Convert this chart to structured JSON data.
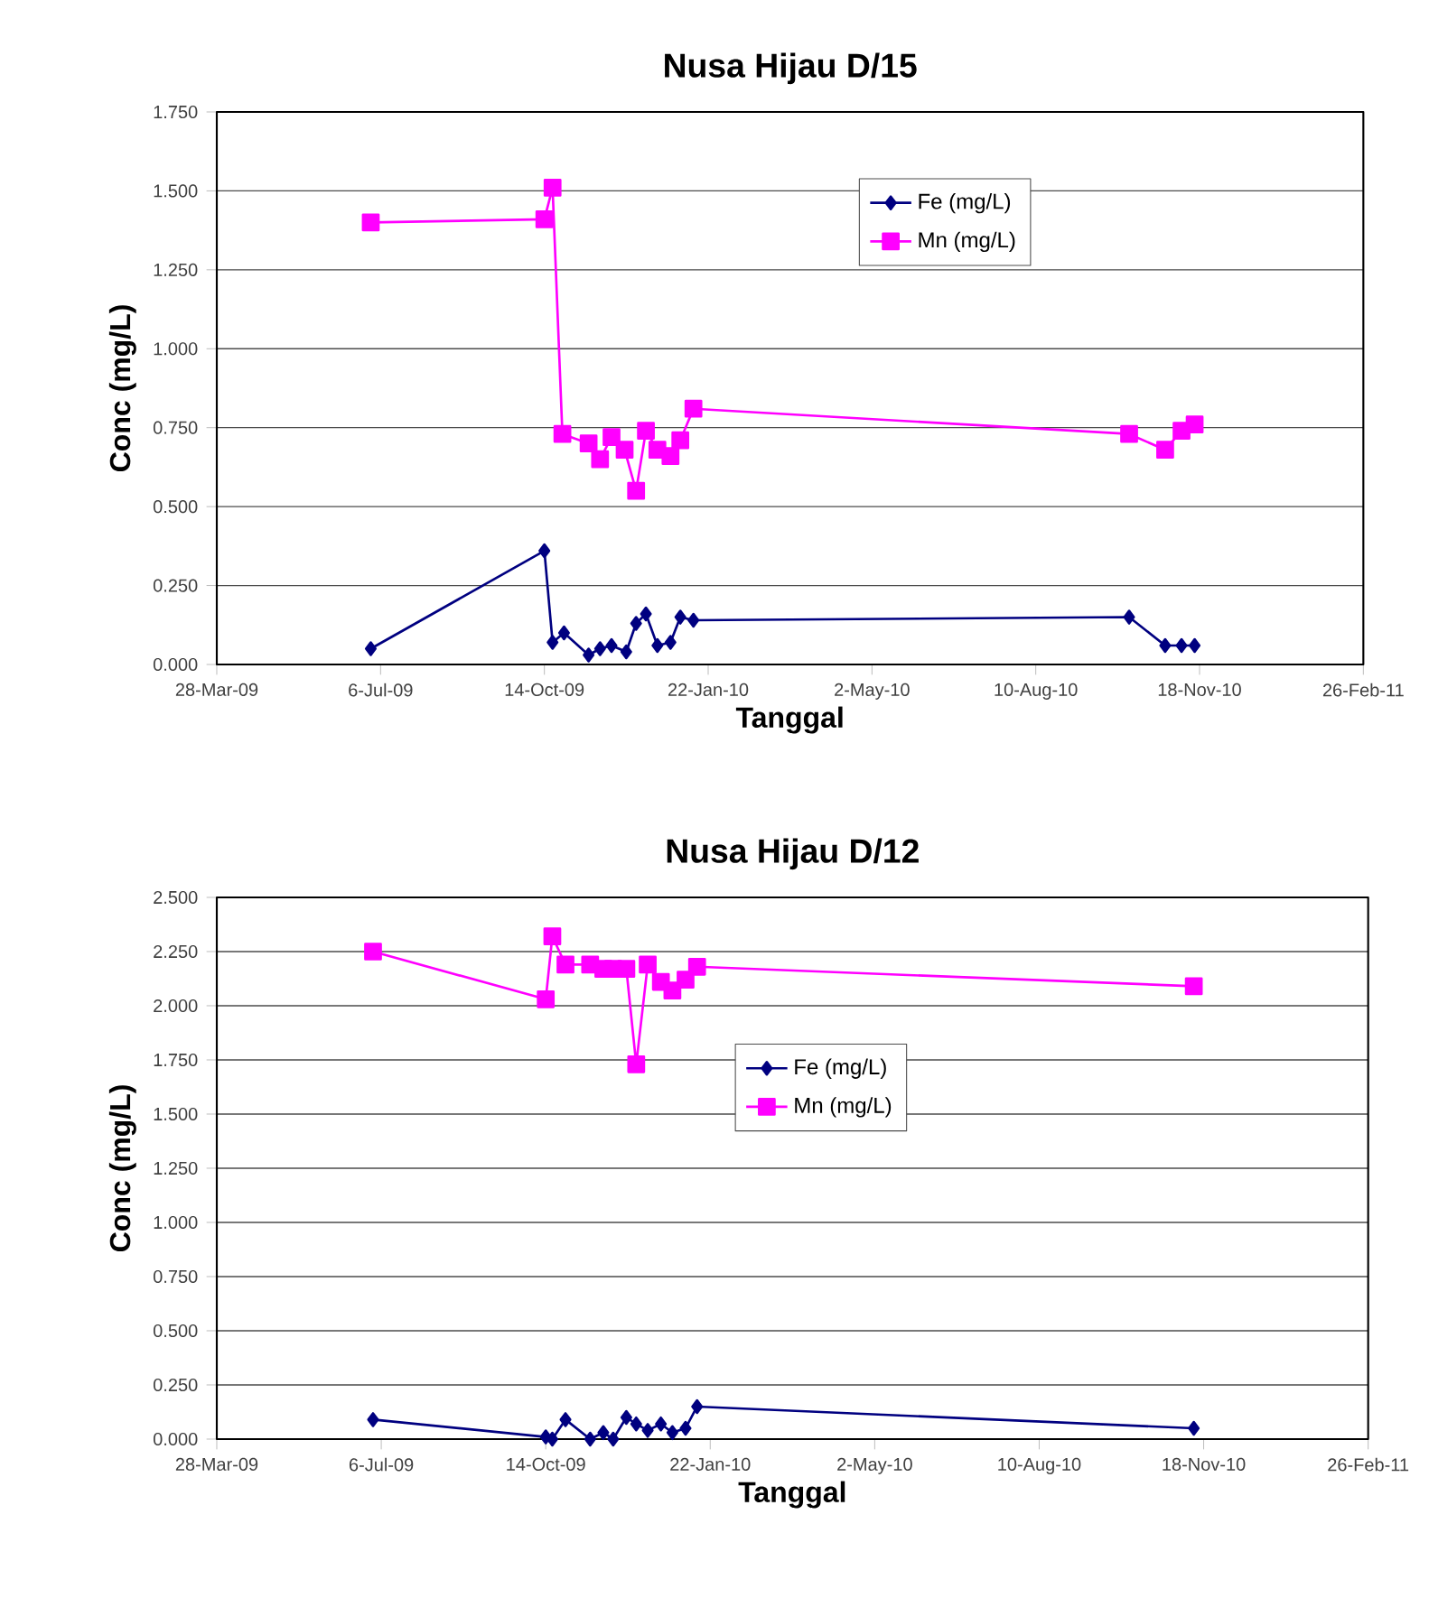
{
  "chart_data": [
    {
      "type": "line",
      "title": "Nusa Hijau D/15",
      "xlabel": "Tanggal",
      "ylabel": "Conc (mg/L)",
      "xlim": [
        "2009-03-28",
        "2011-02-26"
      ],
      "xticks": [
        {
          "value": "2009-03-28",
          "label": "28-Mar-09"
        },
        {
          "value": "2009-07-06",
          "label": "6-Jul-09"
        },
        {
          "value": "2009-10-14",
          "label": "14-Oct-09"
        },
        {
          "value": "2010-01-22",
          "label": "22-Jan-10"
        },
        {
          "value": "2010-05-02",
          "label": "2-May-10"
        },
        {
          "value": "2010-08-10",
          "label": "10-Aug-10"
        },
        {
          "value": "2010-11-18",
          "label": "18-Nov-10"
        },
        {
          "value": "2011-02-26",
          "label": "26-Feb-11"
        }
      ],
      "ylim": [
        0,
        1.75
      ],
      "yticks": [
        {
          "value": 0,
          "label": "0.000"
        },
        {
          "value": 0.25,
          "label": "0.250"
        },
        {
          "value": 0.5,
          "label": "0.500"
        },
        {
          "value": 0.75,
          "label": "0.750"
        },
        {
          "value": 1.0,
          "label": "1.000"
        },
        {
          "value": 1.25,
          "label": "1.250"
        },
        {
          "value": 1.5,
          "label": "1.500"
        },
        {
          "value": 1.75,
          "label": "1.750"
        }
      ],
      "grid": "y",
      "legend": "top right",
      "line_style": "solid",
      "series": [
        {
          "name": "Fe (mg/L)",
          "color": "#000080",
          "marker": "diamond",
          "x": [
            "2009-06-30",
            "2009-10-14",
            "2009-10-19",
            "2009-10-26",
            "2009-11-10",
            "2009-11-17",
            "2009-11-24",
            "2009-12-03",
            "2009-12-09",
            "2009-12-15",
            "2009-12-22",
            "2009-12-30",
            "2010-01-05",
            "2010-01-13",
            "2010-10-06",
            "2010-10-28",
            "2010-11-07",
            "2010-11-15"
          ],
          "values": [
            0.05,
            0.36,
            0.07,
            0.1,
            0.03,
            0.05,
            0.06,
            0.04,
            0.13,
            0.16,
            0.06,
            0.07,
            0.15,
            0.14,
            0.15,
            0.06,
            0.06,
            0.06
          ]
        },
        {
          "name": "Mn (mg/L)",
          "color": "#ff00ff",
          "marker": "square",
          "x": [
            "2009-06-30",
            "2009-10-14",
            "2009-10-19",
            "2009-10-25",
            "2009-11-10",
            "2009-11-17",
            "2009-11-24",
            "2009-12-02",
            "2009-12-09",
            "2009-12-15",
            "2009-12-22",
            "2009-12-30",
            "2010-01-05",
            "2010-01-13",
            "2010-10-06",
            "2010-10-28",
            "2010-11-07",
            "2010-11-15"
          ],
          "values": [
            1.4,
            1.41,
            1.51,
            0.73,
            0.7,
            0.65,
            0.72,
            0.68,
            0.55,
            0.74,
            0.68,
            0.66,
            0.71,
            0.81,
            0.73,
            0.68,
            0.74,
            0.76
          ]
        }
      ]
    },
    {
      "type": "line",
      "title": "Nusa Hijau D/12",
      "xlabel": "Tanggal",
      "ylabel": "Conc (mg/L)",
      "xlim": [
        "2009-03-28",
        "2011-02-26"
      ],
      "xticks": [
        {
          "value": "2009-03-28",
          "label": "28-Mar-09"
        },
        {
          "value": "2009-07-06",
          "label": "6-Jul-09"
        },
        {
          "value": "2009-10-14",
          "label": "14-Oct-09"
        },
        {
          "value": "2010-01-22",
          "label": "22-Jan-10"
        },
        {
          "value": "2010-05-02",
          "label": "2-May-10"
        },
        {
          "value": "2010-08-10",
          "label": "10-Aug-10"
        },
        {
          "value": "2010-11-18",
          "label": "18-Nov-10"
        },
        {
          "value": "2011-02-26",
          "label": "26-Feb-11"
        }
      ],
      "ylim": [
        0,
        2.5
      ],
      "yticks": [
        {
          "value": 0,
          "label": "0.000"
        },
        {
          "value": 0.25,
          "label": "0.250"
        },
        {
          "value": 0.5,
          "label": "0.500"
        },
        {
          "value": 0.75,
          "label": "0.750"
        },
        {
          "value": 1.0,
          "label": "1.000"
        },
        {
          "value": 1.25,
          "label": "1.250"
        },
        {
          "value": 1.5,
          "label": "1.500"
        },
        {
          "value": 1.75,
          "label": "1.750"
        },
        {
          "value": 2.0,
          "label": "2.000"
        },
        {
          "value": 2.25,
          "label": "2.250"
        },
        {
          "value": 2.5,
          "label": "2.500"
        }
      ],
      "grid": "y",
      "legend": "center",
      "line_style": "solid",
      "series": [
        {
          "name": "Fe (mg/L)",
          "color": "#000080",
          "marker": "diamond",
          "x": [
            "2009-07-01",
            "2009-10-14",
            "2009-10-18",
            "2009-10-26",
            "2009-11-10",
            "2009-11-18",
            "2009-11-24",
            "2009-12-02",
            "2009-12-08",
            "2009-12-15",
            "2009-12-23",
            "2009-12-30",
            "2010-01-07",
            "2010-01-14",
            "2010-11-12"
          ],
          "values": [
            0.09,
            0.01,
            0.0,
            0.09,
            0.0,
            0.03,
            0.0,
            0.1,
            0.07,
            0.04,
            0.07,
            0.03,
            0.05,
            0.15,
            0.05
          ]
        },
        {
          "name": "Mn (mg/L)",
          "color": "#ff00ff",
          "marker": "square",
          "x": [
            "2009-07-01",
            "2009-10-14",
            "2009-10-18",
            "2009-10-26",
            "2009-11-10",
            "2009-11-18",
            "2009-11-24",
            "2009-12-02",
            "2009-12-08",
            "2009-12-15",
            "2009-12-23",
            "2009-12-30",
            "2010-01-07",
            "2010-01-14",
            "2010-11-12"
          ],
          "values": [
            2.25,
            2.03,
            2.32,
            2.19,
            2.19,
            2.17,
            2.17,
            2.17,
            1.73,
            2.19,
            2.11,
            2.07,
            2.12,
            2.18,
            2.09
          ]
        }
      ]
    }
  ]
}
